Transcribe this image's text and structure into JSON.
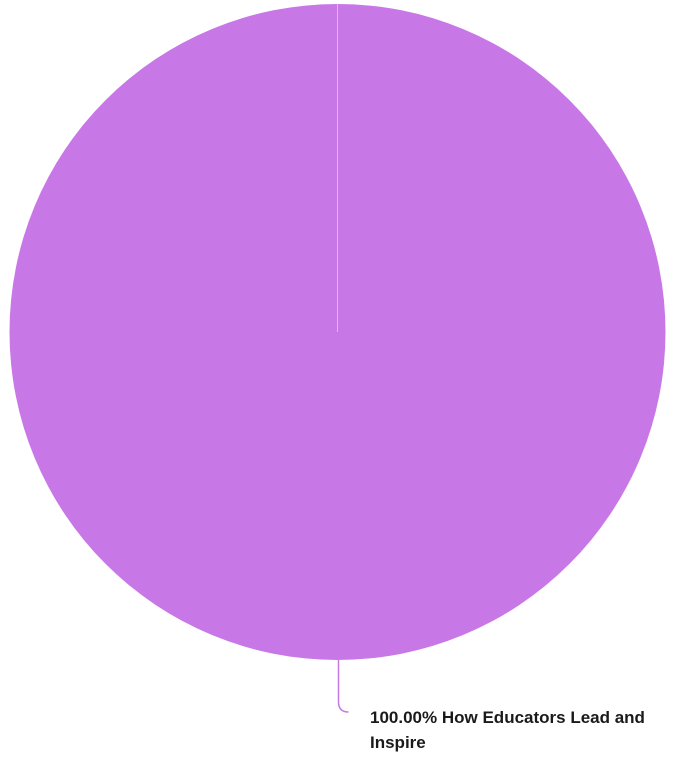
{
  "chart_data": {
    "type": "pie",
    "title": "",
    "slices": [
      {
        "label": "How Educators Lead and Inspire",
        "value": 100.0,
        "percent_label": "100.00%",
        "color": "#c878e6"
      }
    ],
    "legend": "none",
    "data_labels": "outside-leader-line"
  }
}
